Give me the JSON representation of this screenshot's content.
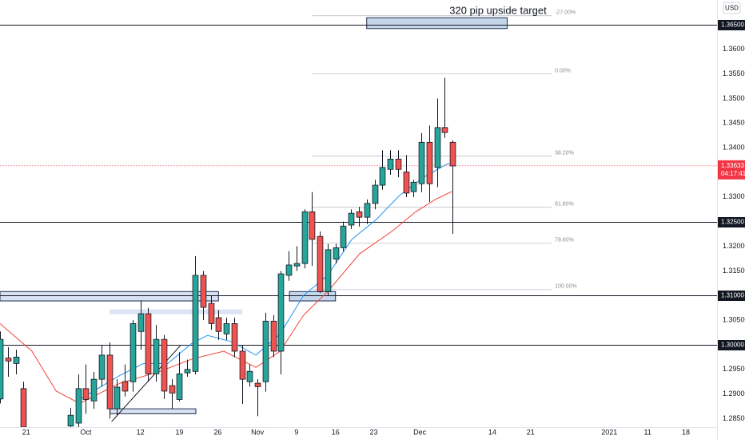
{
  "chart_data": {
    "type": "candlestick",
    "currency": "USD",
    "annotation": "320 pip upside target",
    "xlim": [
      0,
      91.9
    ],
    "ylim": [
      1.2833,
      1.37
    ],
    "xticks": [
      {
        "value": 3.36,
        "label": "21"
      },
      {
        "value": 11.0,
        "label": "Oct"
      },
      {
        "value": 18.0,
        "label": "12"
      },
      {
        "value": 23.0,
        "label": "19"
      },
      {
        "value": 27.9,
        "label": "26"
      },
      {
        "value": 33.0,
        "label": "Nov"
      },
      {
        "value": 38.0,
        "label": "9"
      },
      {
        "value": 43.0,
        "label": "16"
      },
      {
        "value": 47.9,
        "label": "23"
      },
      {
        "value": 53.8,
        "label": "Dec"
      },
      {
        "value": 63.1,
        "label": "14"
      },
      {
        "value": 68.0,
        "label": "21"
      },
      {
        "value": 78.1,
        "label": "2021"
      },
      {
        "value": 83.0,
        "label": "11"
      },
      {
        "value": 87.9,
        "label": "18"
      }
    ],
    "yticks": [
      {
        "value": 1.285,
        "label": "1.28500"
      },
      {
        "value": 1.29,
        "label": "1.29000"
      },
      {
        "value": 1.295,
        "label": "1.29500"
      },
      {
        "value": 1.305,
        "label": "1.30500"
      },
      {
        "value": 1.315,
        "label": "1.31500"
      },
      {
        "value": 1.32,
        "label": "1.32000"
      },
      {
        "value": 1.33,
        "label": "1.33000"
      },
      {
        "value": 1.34,
        "label": "1.34000"
      },
      {
        "value": 1.345,
        "label": "1.34500"
      },
      {
        "value": 1.35,
        "label": "1.35000"
      },
      {
        "value": 1.355,
        "label": "1.35500"
      },
      {
        "value": 1.36,
        "label": "1.36000"
      }
    ],
    "grid": false,
    "up_color": "#26a69a",
    "down_color": "#ef5350",
    "candles": {
      "x": [
        0,
        1,
        2,
        3,
        9,
        10,
        11,
        12,
        13,
        14,
        15,
        16,
        17,
        18,
        19,
        20,
        21,
        22,
        23,
        24,
        25,
        26,
        27,
        28,
        29,
        30,
        31,
        32,
        33,
        34,
        35,
        36,
        37,
        38,
        39,
        40,
        41,
        42,
        43,
        44,
        45,
        46,
        47,
        48,
        49,
        50,
        51,
        52,
        53,
        54,
        55,
        56,
        57,
        58
      ],
      "open": [
        1.289,
        1.2973,
        1.2962,
        1.2911,
        1.2835,
        1.2841,
        1.2911,
        1.2886,
        1.293,
        1.2979,
        1.287,
        1.2925,
        1.2925,
        1.3027,
        1.3063,
        1.2941,
        1.3011,
        1.2917,
        1.2889,
        1.2943,
        1.2946,
        1.3141,
        1.3084,
        1.3055,
        1.3022,
        1.3043,
        1.2987,
        1.2925,
        1.2922,
        1.2925,
        1.3048,
        1.2987,
        1.3141,
        1.316,
        1.3165,
        1.327,
        1.322,
        1.3108,
        1.3174,
        1.3197,
        1.3243,
        1.327,
        1.3259,
        1.3287,
        1.3324,
        1.3356,
        1.3377,
        1.3351,
        1.3311,
        1.3327,
        1.3411,
        1.336,
        1.3441,
        1.3411
      ],
      "high": [
        1.3027,
        1.2995,
        1.299,
        1.2925,
        1.2872,
        1.294,
        1.296,
        1.2945,
        1.3,
        1.3005,
        1.293,
        1.296,
        1.305,
        1.309,
        1.3075,
        1.304,
        1.302,
        1.293,
        1.2985,
        1.297,
        1.318,
        1.315,
        1.31,
        1.307,
        1.3055,
        1.3055,
        1.3,
        1.296,
        1.293,
        1.3065,
        1.306,
        1.315,
        1.319,
        1.32,
        1.3275,
        1.331,
        1.323,
        1.3205,
        1.3205,
        1.325,
        1.3275,
        1.328,
        1.3295,
        1.3335,
        1.3395,
        1.3395,
        1.3395,
        1.3385,
        1.3335,
        1.343,
        1.3445,
        1.35,
        1.3542,
        1.3415
      ],
      "low": [
        1.2881,
        1.2935,
        1.294,
        1.2833,
        1.2833,
        1.2833,
        1.286,
        1.287,
        1.2915,
        1.285,
        1.2855,
        1.2895,
        1.2905,
        1.299,
        1.2925,
        1.2925,
        1.289,
        1.287,
        1.2885,
        1.2935,
        1.294,
        1.305,
        1.303,
        1.301,
        1.301,
        1.2975,
        1.288,
        1.2915,
        1.2855,
        1.2905,
        1.2975,
        1.294,
        1.313,
        1.315,
        1.3155,
        1.316,
        1.3105,
        1.31,
        1.3165,
        1.319,
        1.3235,
        1.324,
        1.3245,
        1.3275,
        1.3315,
        1.3345,
        1.334,
        1.33,
        1.33,
        1.331,
        1.329,
        1.332,
        1.342,
        1.3225
      ],
      "close": [
        1.3011,
        1.2967,
        1.2975,
        1.2833,
        1.2857,
        1.2911,
        1.2889,
        1.293,
        1.2979,
        1.287,
        1.2914,
        1.2906,
        1.3043,
        1.3063,
        1.2941,
        1.3011,
        1.2906,
        1.2902,
        1.2941,
        1.295,
        1.3141,
        1.3076,
        1.3043,
        1.3027,
        1.3043,
        1.2987,
        1.293,
        1.2946,
        1.2915,
        1.3048,
        1.2987,
        1.3144,
        1.3162,
        1.3165,
        1.327,
        1.3214,
        1.3108,
        1.3193,
        1.3197,
        1.3241,
        1.3267,
        1.3259,
        1.3287,
        1.3324,
        1.336,
        1.3377,
        1.3356,
        1.3308,
        1.333,
        1.3411,
        1.3327,
        1.3441,
        1.3431,
        1.3363
      ]
    },
    "ma_lines": [
      {
        "color": "#2196f3",
        "x": [
          10.2,
          15.4,
          18.4,
          21.5,
          24.6,
          26.6,
          29.7,
          32.8,
          35.9,
          38.9,
          42.0,
          45.1,
          48.2,
          51.2,
          54.3,
          57.4,
          58.4
        ],
        "values": [
          1.2889,
          1.2938,
          1.2962,
          1.2962,
          1.3003,
          1.3019,
          1.3006,
          1.2979,
          1.3022,
          1.31,
          1.3141,
          1.3214,
          1.3254,
          1.3303,
          1.334,
          1.3368,
          1.3364
        ]
      },
      {
        "color": "#f44336",
        "x": [
          0,
          4.1,
          7.2,
          10.2,
          15.4,
          20.5,
          24.6,
          28.7,
          32.8,
          35.9,
          38.9,
          42.0,
          46.1,
          50.2,
          53.3,
          55.8,
          57.9
        ],
        "values": [
          1.3043,
          1.2987,
          1.2906,
          1.2881,
          1.2922,
          1.2946,
          1.2971,
          1.2987,
          1.2954,
          1.2987,
          1.306,
          1.3108,
          1.3185,
          1.323,
          1.327,
          1.3295,
          1.3311
        ]
      }
    ],
    "hlines": [
      {
        "value": 1.365,
        "label": "1.36500"
      },
      {
        "value": 1.325,
        "label": "1.32500"
      },
      {
        "value": 1.31,
        "label": "1.31000"
      },
      {
        "value": 1.3,
        "label": "1.30000"
      }
    ],
    "last_price": {
      "value": 1.33633,
      "countdown": "04:17:41",
      "color": "#f23645"
    },
    "fib": {
      "x": [
        40,
        70.7
      ],
      "levels": [
        {
          "price": 1.3668,
          "label": "-27.00%"
        },
        {
          "price": 1.355,
          "label": "0.00%"
        },
        {
          "price": 1.3383,
          "label": "38.20%"
        },
        {
          "price": 1.3279,
          "label": "61.80%"
        },
        {
          "price": 1.3206,
          "label": "78.60%"
        },
        {
          "price": 1.3112,
          "label": "100.00%"
        }
      ]
    },
    "zones": [
      {
        "x": [
          47.0,
          65.0
        ],
        "y": [
          1.3642,
          1.3664
        ],
        "fill": "#c6d6ea",
        "stroke": "#1e2a50"
      },
      {
        "x": [
          0,
          28.0
        ],
        "y": [
          1.3089,
          1.3108
        ],
        "fill": "#d9e2f1",
        "stroke": "#1e2a50"
      },
      {
        "x": [
          14.1,
          31.0
        ],
        "y": [
          1.3063,
          1.3071
        ],
        "fill": "#dde3f3",
        "stroke": "#dde3f3"
      },
      {
        "x": [
          14.1,
          25.1
        ],
        "y": [
          1.286,
          1.287
        ],
        "fill": "#d9e2f1",
        "stroke": "#1e2a50"
      },
      {
        "x": [
          37.1,
          43.0
        ],
        "y": [
          1.3089,
          1.3108
        ],
        "fill": "#c6d6ea",
        "stroke": "#1e2a50"
      }
    ],
    "trendlines": [
      {
        "x": [
          14.3,
          23.1
        ],
        "values": [
          1.2844,
          1.2998
        ]
      }
    ]
  }
}
